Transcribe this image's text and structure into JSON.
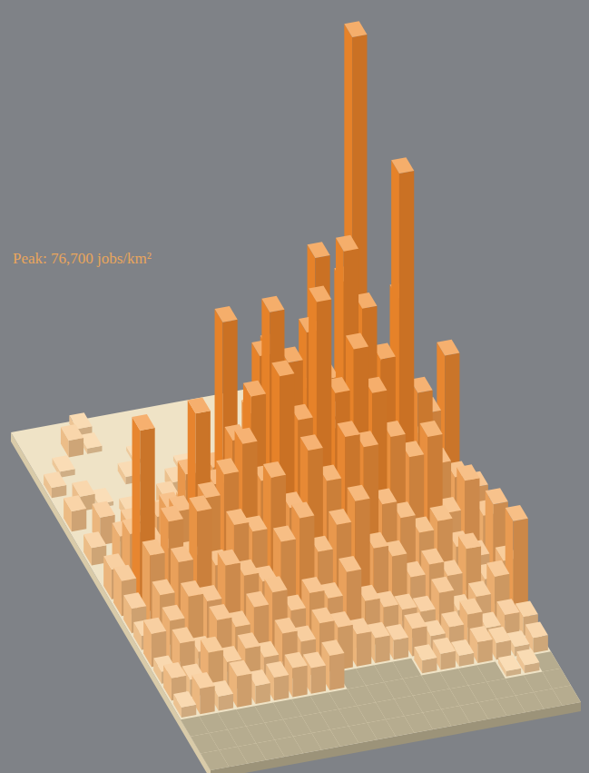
{
  "chart_data": {
    "type": "bar3d",
    "annotations": [
      "Peak: 76,700 jobs/km²"
    ],
    "color": "#f0872b",
    "tick_labels": false,
    "values": [
      [
        0,
        0,
        0,
        1200,
        0,
        0,
        0,
        0,
        0,
        0,
        0,
        0,
        0,
        0,
        0,
        0,
        0,
        0,
        0,
        0
      ],
      [
        0,
        0,
        2500,
        800,
        0,
        0,
        0,
        0,
        0,
        0,
        0,
        0,
        0,
        0,
        0,
        0,
        0,
        0,
        0,
        0
      ],
      [
        0,
        900,
        0,
        0,
        0,
        600,
        0,
        0,
        0,
        0,
        0,
        0,
        0,
        0,
        0,
        0,
        0,
        0,
        0,
        0
      ],
      [
        1500,
        0,
        0,
        0,
        1100,
        0,
        0,
        700,
        0,
        0,
        0,
        0,
        0,
        0,
        0,
        0,
        0,
        0,
        0,
        0
      ],
      [
        0,
        2200,
        600,
        0,
        0,
        0,
        1800,
        0,
        0,
        500,
        0,
        0,
        0,
        0,
        0,
        0,
        0,
        0,
        0,
        0
      ],
      [
        3000,
        0,
        0,
        1400,
        0,
        2600,
        0,
        0,
        1200,
        0,
        900,
        0,
        0,
        0,
        0,
        1500,
        0,
        0,
        0,
        0
      ],
      [
        0,
        4100,
        800,
        0,
        2900,
        0,
        3500,
        1500,
        0,
        2200,
        0,
        1800,
        0,
        2500,
        0,
        0,
        3900,
        0,
        0,
        0
      ],
      [
        2600,
        0,
        5200,
        1900,
        0,
        6400,
        2100,
        8300,
        3600,
        4700,
        2400,
        6900,
        3100,
        7200,
        4400,
        9800,
        2600,
        8100,
        0,
        0
      ],
      [
        0,
        6300,
        3700,
        8200,
        4500,
        9600,
        14000,
        6800,
        21000,
        30000,
        11000,
        18000,
        24000,
        38000,
        9000,
        16000,
        34000,
        7400,
        3300,
        0
      ],
      [
        4400,
        9200,
        7300,
        12000,
        16500,
        10200,
        38000,
        13000,
        32000,
        19000,
        26000,
        45000,
        21000,
        76700,
        28000,
        12000,
        15000,
        19000,
        27000,
        5200
      ],
      [
        5200,
        27000,
        8800,
        14000,
        28000,
        17000,
        23000,
        29000,
        41000,
        33000,
        37000,
        22000,
        48000,
        39000,
        31000,
        58000,
        25000,
        14000,
        11500,
        9500
      ],
      [
        3600,
        11000,
        15500,
        9800,
        18000,
        21000,
        25000,
        19000,
        34000,
        27000,
        44000,
        30000,
        36000,
        29000,
        22000,
        18500,
        21000,
        9200,
        13500,
        7800
      ],
      [
        2100,
        7600,
        12000,
        19000,
        10500,
        16000,
        14500,
        22000,
        17000,
        25000,
        20000,
        26000,
        24000,
        15000,
        12500,
        9800,
        11000,
        6700,
        4800,
        12000
      ],
      [
        4900,
        6300,
        9400,
        8200,
        13000,
        11000,
        9600,
        15000,
        18000,
        12500,
        16000,
        19000,
        11500,
        9800,
        6200,
        7600,
        5400,
        8900,
        3900,
        6100
      ],
      [
        1800,
        5500,
        3700,
        7900,
        6400,
        8800,
        10500,
        7300,
        9400,
        8100,
        11500,
        6700,
        5300,
        4400,
        3600,
        5900,
        2800,
        4300,
        6800,
        14500
      ],
      [
        3300,
        2600,
        6100,
        4200,
        5700,
        3900,
        6900,
        5200,
        7400,
        6300,
        4800,
        3700,
        2900,
        4100,
        2500,
        3300,
        4700,
        2200,
        3600,
        2800
      ],
      [
        1500,
        3800,
        2100,
        4600,
        2700,
        3400,
        4300,
        3800,
        5100,
        null,
        null,
        null,
        null,
        1900,
        2400,
        1600,
        3100,
        2500,
        1400,
        2200
      ],
      [
        null,
        null,
        null,
        null,
        null,
        null,
        null,
        null,
        null,
        null,
        null,
        null,
        null,
        null,
        null,
        null,
        null,
        800,
        1200,
        null
      ],
      [
        null,
        null,
        null,
        null,
        null,
        null,
        null,
        null,
        null,
        null,
        null,
        null,
        null,
        null,
        null,
        null,
        null,
        null,
        null,
        null
      ],
      [
        null,
        null,
        null,
        null,
        null,
        null,
        null,
        null,
        null,
        null,
        null,
        null,
        null,
        null,
        null,
        null,
        null,
        null,
        null,
        null
      ]
    ]
  }
}
